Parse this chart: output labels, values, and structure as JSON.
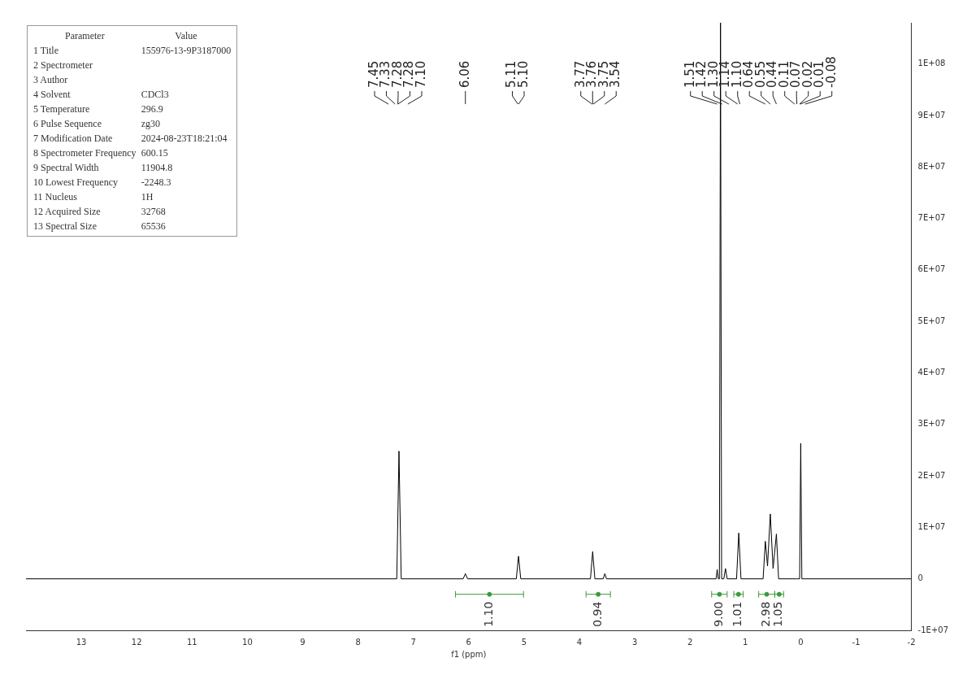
{
  "chart_data": [
    {
      "type": "line",
      "xlabel": "f1 (ppm)",
      "xlim": [
        14,
        -2
      ],
      "xticks": [
        13,
        12,
        11,
        10,
        9,
        8,
        7,
        6,
        5,
        4,
        3,
        2,
        1,
        0,
        -1,
        -2
      ],
      "ylim": [
        -10000000,
        108000000
      ],
      "yticks": [
        {
          "value": -10000000,
          "label": "-1E+07"
        },
        0,
        {
          "value": 10000000,
          "label": "1E+07"
        },
        {
          "value": 20000000,
          "label": "2E+07"
        },
        {
          "value": 30000000,
          "label": "3E+07"
        },
        {
          "value": 40000000,
          "label": "4E+07"
        },
        {
          "value": 50000000,
          "label": "5E+07"
        },
        {
          "value": 60000000,
          "label": "6E+07"
        },
        {
          "value": 70000000,
          "label": "7E+07"
        },
        {
          "value": 80000000,
          "label": "8E+07"
        },
        {
          "value": 90000000,
          "label": "9E+07"
        },
        {
          "value": 100000000,
          "label": "1E+08"
        }
      ],
      "grid": false,
      "legend": false,
      "line_style": "solid",
      "series": [
        {
          "color": "#000000",
          "marker": "none",
          "x": [
            14,
            7.45,
            7.3,
            7.26,
            7.22,
            7.1,
            6.1,
            6.06,
            6.02,
            5.14,
            5.1,
            5.06,
            3.8,
            3.76,
            3.72,
            3.57,
            3.54,
            3.51,
            1.53,
            1.51,
            1.49,
            1.47,
            1.45,
            1.43,
            1.39,
            1.36,
            1.33,
            1.16,
            1.12,
            1.08,
            0.68,
            0.64,
            0.6,
            0.55,
            0.5,
            0.44,
            0.4,
            0.11,
            0.07,
            0.02,
            0,
            -0.02,
            -0.08,
            -2
          ],
          "values": [
            0,
            0,
            0,
            24800000,
            0,
            0,
            0,
            1000000,
            0,
            0,
            4400000,
            0,
            0,
            5300000,
            0,
            0,
            1000000,
            0,
            0,
            1800000,
            0,
            0,
            108000000,
            0,
            0,
            2000000,
            0,
            0,
            8900000,
            0,
            0,
            7300000,
            2500000,
            12600000,
            2000000,
            8700000,
            0,
            0,
            0,
            0,
            26300000,
            0,
            0,
            0
          ]
        },
        {
          "type": "scatter",
          "color": "#3c9a3c",
          "marker": "circle",
          "x": [
            5.625,
            3.66,
            1.47,
            1.125,
            0.615,
            0.39
          ],
          "values": [
            -3000000,
            -3000000,
            -3000000,
            -3000000,
            -3000000,
            -3000000
          ],
          "xerrors": [
            [
              5.01,
              6.24
            ],
            [
              3.44,
              3.88
            ],
            [
              1.33,
              1.61
            ],
            [
              1.04,
              1.21
            ],
            [
              0.47,
              0.76
            ],
            [
              0.31,
              0.47
            ]
          ]
        }
      ],
      "annotations": [
        {
          "text": "7.45",
          "x": 7.45
        },
        {
          "text": "7.33",
          "x": 7.33
        },
        {
          "text": "7.28",
          "x": 7.28
        },
        {
          "text": "7.28",
          "x": 7.28
        },
        {
          "text": "7.10",
          "x": 7.1
        },
        {
          "text": "6.06",
          "x": 6.06
        },
        {
          "text": "5.11",
          "x": 5.11
        },
        {
          "text": "5.10",
          "x": 5.1
        },
        {
          "text": "3.77",
          "x": 3.77
        },
        {
          "text": "3.76",
          "x": 3.76
        },
        {
          "text": "3.75",
          "x": 3.75
        },
        {
          "text": "3.54",
          "x": 3.54
        },
        {
          "text": "1.51",
          "x": 1.51
        },
        {
          "text": "1.42",
          "x": 1.42
        },
        {
          "text": "1.30",
          "x": 1.3
        },
        {
          "text": "1.14",
          "x": 1.14
        },
        {
          "text": "1.10",
          "x": 1.1
        },
        {
          "text": "0.64",
          "x": 0.64
        },
        {
          "text": "0.55",
          "x": 0.55
        },
        {
          "text": "0.44",
          "x": 0.44
        },
        {
          "text": "0.11",
          "x": 0.11
        },
        {
          "text": "0.07",
          "x": 0.07
        },
        {
          "text": "0.02",
          "x": 0.02
        },
        {
          "text": "0.01",
          "x": 0.01
        },
        {
          "text": "-0.08",
          "x": -0.08
        },
        {
          "text": "1.10",
          "x": 5.625,
          "y": -3000000
        },
        {
          "text": "0.94",
          "x": 3.66,
          "y": -3000000
        },
        {
          "text": "9.00",
          "x": 1.47,
          "y": -3000000
        },
        {
          "text": "1.01",
          "x": 1.125,
          "y": -3000000
        },
        {
          "text": "2.98",
          "x": 0.615,
          "y": -3000000
        },
        {
          "text": "1.05",
          "x": 0.39,
          "y": -3000000
        }
      ],
      "tick_labels": true
    },
    {
      "type": "other",
      "categories": [
        "Parameter",
        "Value"
      ],
      "y_categories": [
        "1 Title",
        "2 Spectrometer",
        "3 Author",
        "4 Solvent",
        "5 Temperature",
        "6 Pulse Sequence",
        "7 Modification Date",
        "8 Spectrometer Frequency",
        "9 Spectral Width",
        "10 Lowest Frequency",
        "11 Nucleus",
        "12 Acquired Size",
        "13 Spectral Size"
      ],
      "cell_labels": [
        [
          "155976-13-9P3187000"
        ],
        [
          null
        ],
        [
          null
        ],
        [
          "CDCl3"
        ],
        [
          "296.9"
        ],
        [
          "zg30"
        ],
        [
          "2024-08-23T18:21:04"
        ],
        [
          "600.15"
        ],
        [
          "11904.8"
        ],
        [
          "-2248.3"
        ],
        [
          "1H"
        ],
        [
          "32768"
        ],
        [
          "65536"
        ]
      ]
    }
  ]
}
